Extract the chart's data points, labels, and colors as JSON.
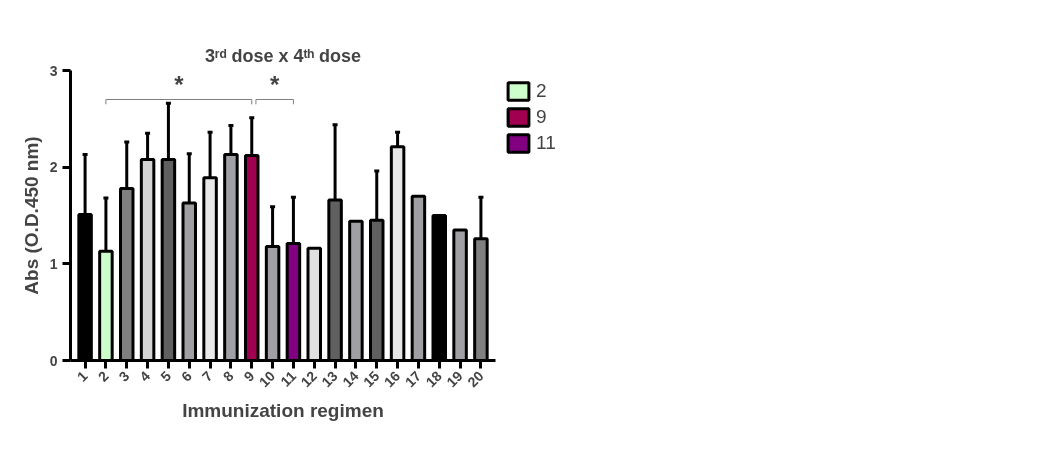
{
  "chart_data": {
    "type": "bar",
    "title": "3ʳᵈ dose x 4ᵗʰ dose",
    "xlabel": "Immunization regimen",
    "ylabel": "Abs (O.D.450 nm)",
    "categories": [
      "1",
      "2",
      "3",
      "4",
      "5",
      "6",
      "7",
      "8",
      "9",
      "10",
      "11",
      "12",
      "13",
      "14",
      "15",
      "16",
      "17",
      "18",
      "19",
      "20"
    ],
    "series": [
      {
        "colors": [
          "#000000",
          "#ccffcc",
          "#808080",
          "#d4d4d4",
          "#606060",
          "#a0a0a4",
          "#e8e8e8",
          "#a0a0a4",
          "#a0004f",
          "#a0a0a4",
          "#800080",
          "#e0e0e0",
          "#606060",
          "#a0a0a4",
          "#606060",
          "#e8e8e8",
          "#a0a0a4",
          "#000000",
          "#a0a0a4",
          "#808080"
        ],
        "values": [
          1.51,
          null,
          1.78,
          2.08,
          2.08,
          1.63,
          1.89,
          2.13,
          null,
          1.18,
          null,
          1.16,
          1.66,
          1.44,
          1.45,
          2.21,
          1.7,
          1.5,
          1.35,
          1.26
        ],
        "errors": [
          [
            1.51,
            2.13
          ],
          null,
          [
            1.78,
            2.26
          ],
          [
            2.08,
            2.35
          ],
          [
            2.08,
            2.66
          ],
          [
            1.63,
            2.14
          ],
          [
            1.89,
            2.36
          ],
          [
            2.13,
            2.43
          ],
          null,
          [
            1.18,
            1.59
          ],
          null,
          null,
          [
            1.66,
            2.44
          ],
          null,
          [
            1.45,
            1.96
          ],
          [
            2.21,
            2.36
          ],
          null,
          null,
          null,
          [
            1.26,
            1.69
          ]
        ]
      },
      {
        "name": "2",
        "color": "#ccffcc",
        "values": [
          null,
          1.13,
          null,
          null,
          null,
          null,
          null,
          null,
          null,
          null,
          null,
          null,
          null,
          null,
          null,
          null,
          null,
          null,
          null,
          null
        ],
        "errors": [
          null,
          [
            1.13,
            1.68
          ],
          null,
          null,
          null,
          null,
          null,
          null,
          null,
          null,
          null,
          null,
          null,
          null,
          null,
          null,
          null,
          null,
          null,
          null
        ]
      },
      {
        "name": "9",
        "color": "#a0004f",
        "values": [
          null,
          null,
          null,
          null,
          null,
          null,
          null,
          null,
          2.12,
          null,
          null,
          null,
          null,
          null,
          null,
          null,
          null,
          null,
          null,
          null
        ],
        "errors": [
          null,
          null,
          null,
          null,
          null,
          null,
          null,
          null,
          [
            2.12,
            2.51
          ],
          null,
          null,
          null,
          null,
          null,
          null,
          null,
          null,
          null,
          null,
          null
        ]
      },
      {
        "name": "11",
        "color": "#800080",
        "values": [
          null,
          null,
          null,
          null,
          null,
          null,
          null,
          null,
          null,
          null,
          1.21,
          null,
          null,
          null,
          null,
          null,
          null,
          null,
          null,
          null
        ],
        "errors": [
          null,
          null,
          null,
          null,
          null,
          null,
          null,
          null,
          null,
          null,
          [
            1.21,
            1.69
          ],
          null,
          null,
          null,
          null,
          null,
          null,
          null,
          null,
          null
        ]
      }
    ],
    "annotations": [
      "*",
      "*"
    ],
    "ylim": [
      0,
      3
    ],
    "yticks": [
      0,
      1,
      2,
      3
    ],
    "legend": "right"
  }
}
